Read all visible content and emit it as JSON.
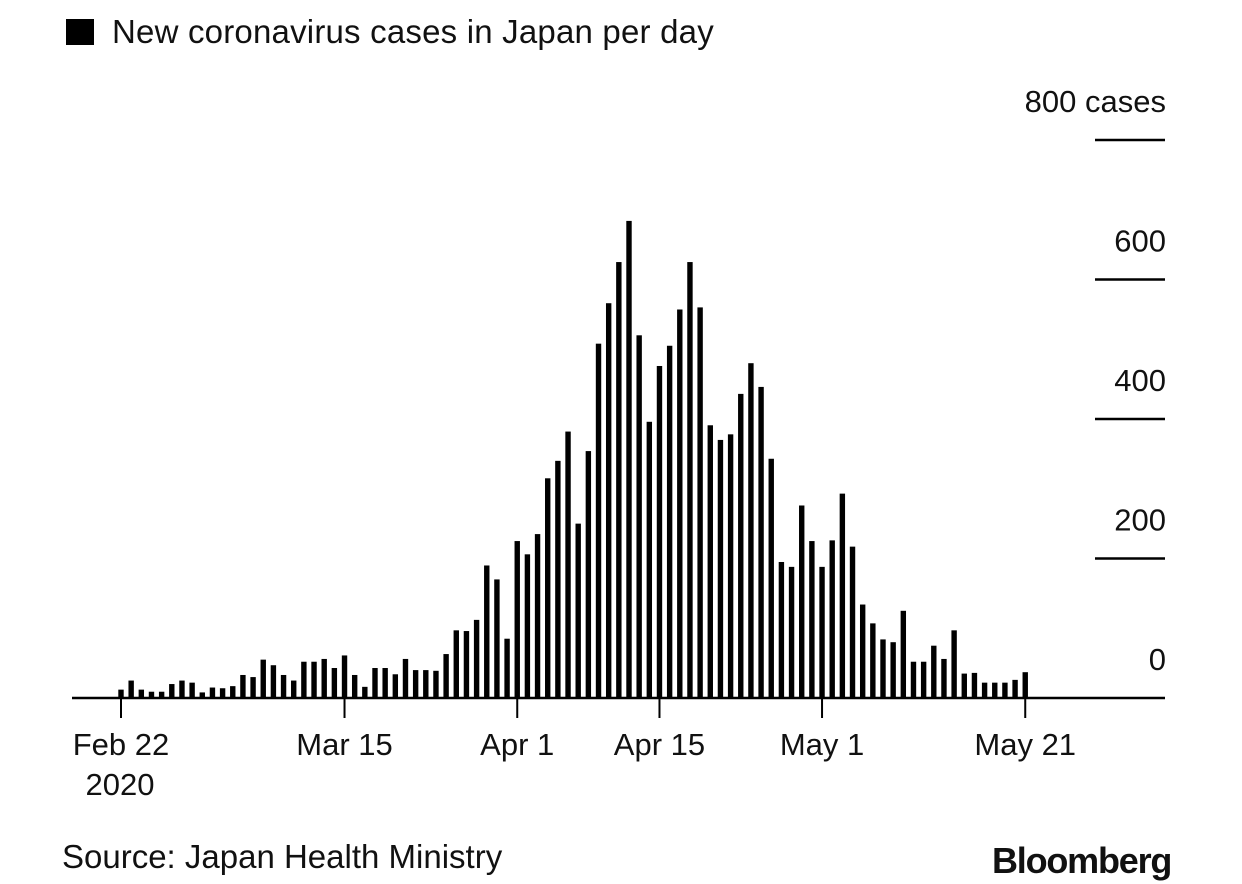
{
  "chart_data": {
    "type": "bar",
    "legend": [
      {
        "name": "New coronavirus cases in Japan per day",
        "color": "#000000"
      }
    ],
    "x": [
      "2020-02-22",
      "2020-02-23",
      "2020-02-24",
      "2020-02-25",
      "2020-02-26",
      "2020-02-27",
      "2020-02-28",
      "2020-02-29",
      "2020-03-01",
      "2020-03-02",
      "2020-03-03",
      "2020-03-04",
      "2020-03-05",
      "2020-03-06",
      "2020-03-07",
      "2020-03-08",
      "2020-03-09",
      "2020-03-10",
      "2020-03-11",
      "2020-03-12",
      "2020-03-13",
      "2020-03-14",
      "2020-03-15",
      "2020-03-16",
      "2020-03-17",
      "2020-03-18",
      "2020-03-19",
      "2020-03-20",
      "2020-03-21",
      "2020-03-22",
      "2020-03-23",
      "2020-03-24",
      "2020-03-25",
      "2020-03-26",
      "2020-03-27",
      "2020-03-28",
      "2020-03-29",
      "2020-03-30",
      "2020-03-31",
      "2020-04-01",
      "2020-04-02",
      "2020-04-03",
      "2020-04-04",
      "2020-04-05",
      "2020-04-06",
      "2020-04-07",
      "2020-04-08",
      "2020-04-09",
      "2020-04-10",
      "2020-04-11",
      "2020-04-12",
      "2020-04-13",
      "2020-04-14",
      "2020-04-15",
      "2020-04-16",
      "2020-04-17",
      "2020-04-18",
      "2020-04-19",
      "2020-04-20",
      "2020-04-21",
      "2020-04-22",
      "2020-04-23",
      "2020-04-24",
      "2020-04-25",
      "2020-04-26",
      "2020-04-27",
      "2020-04-28",
      "2020-04-29",
      "2020-04-30",
      "2020-05-01",
      "2020-05-02",
      "2020-05-03",
      "2020-05-04",
      "2020-05-05",
      "2020-05-06",
      "2020-05-07",
      "2020-05-08",
      "2020-05-09",
      "2020-05-10",
      "2020-05-11",
      "2020-05-12",
      "2020-05-13",
      "2020-05-14",
      "2020-05-15",
      "2020-05-16",
      "2020-05-17",
      "2020-05-18",
      "2020-05-19",
      "2020-05-20",
      "2020-05-21"
    ],
    "series": [
      {
        "color": "#000000",
        "values": [
          12,
          25,
          12,
          9,
          9,
          20,
          25,
          22,
          8,
          15,
          14,
          17,
          33,
          30,
          55,
          47,
          33,
          25,
          52,
          52,
          56,
          43,
          61,
          33,
          16,
          43,
          43,
          34,
          56,
          40,
          40,
          39,
          63,
          97,
          96,
          112,
          190,
          170,
          85,
          225,
          206,
          235,
          315,
          340,
          382,
          250,
          354,
          508,
          566,
          625,
          684,
          520,
          396,
          476,
          505,
          557,
          625,
          560,
          391,
          370,
          378,
          436,
          480,
          446,
          343,
          195,
          188,
          276,
          225,
          188,
          226,
          293,
          217,
          134,
          107,
          84,
          80,
          125,
          52,
          52,
          75,
          56,
          97,
          35,
          36,
          22,
          22,
          22,
          26,
          37
        ]
      }
    ],
    "ylim": [
      0,
      800
    ],
    "yticks": [
      {
        "value": 0,
        "label": "0"
      },
      {
        "value": 200,
        "label": "200"
      },
      {
        "value": 400,
        "label": "400"
      },
      {
        "value": 600,
        "label": "600"
      },
      {
        "value": 800,
        "label": "800 cases"
      }
    ],
    "xticks": [
      {
        "date": "2020-02-22",
        "label": "Feb 22",
        "sublabel": "2020"
      },
      {
        "date": "2020-03-15",
        "label": "Mar 15"
      },
      {
        "date": "2020-04-01",
        "label": "Apr 1"
      },
      {
        "date": "2020-04-15",
        "label": "Apr 15"
      },
      {
        "date": "2020-05-01",
        "label": "May 1"
      },
      {
        "date": "2020-05-21",
        "label": "May 21"
      }
    ],
    "grid": false,
    "legend_position": "top-left"
  },
  "footer": {
    "source": "Source: Japan Health Ministry",
    "brand": "Bloomberg"
  }
}
